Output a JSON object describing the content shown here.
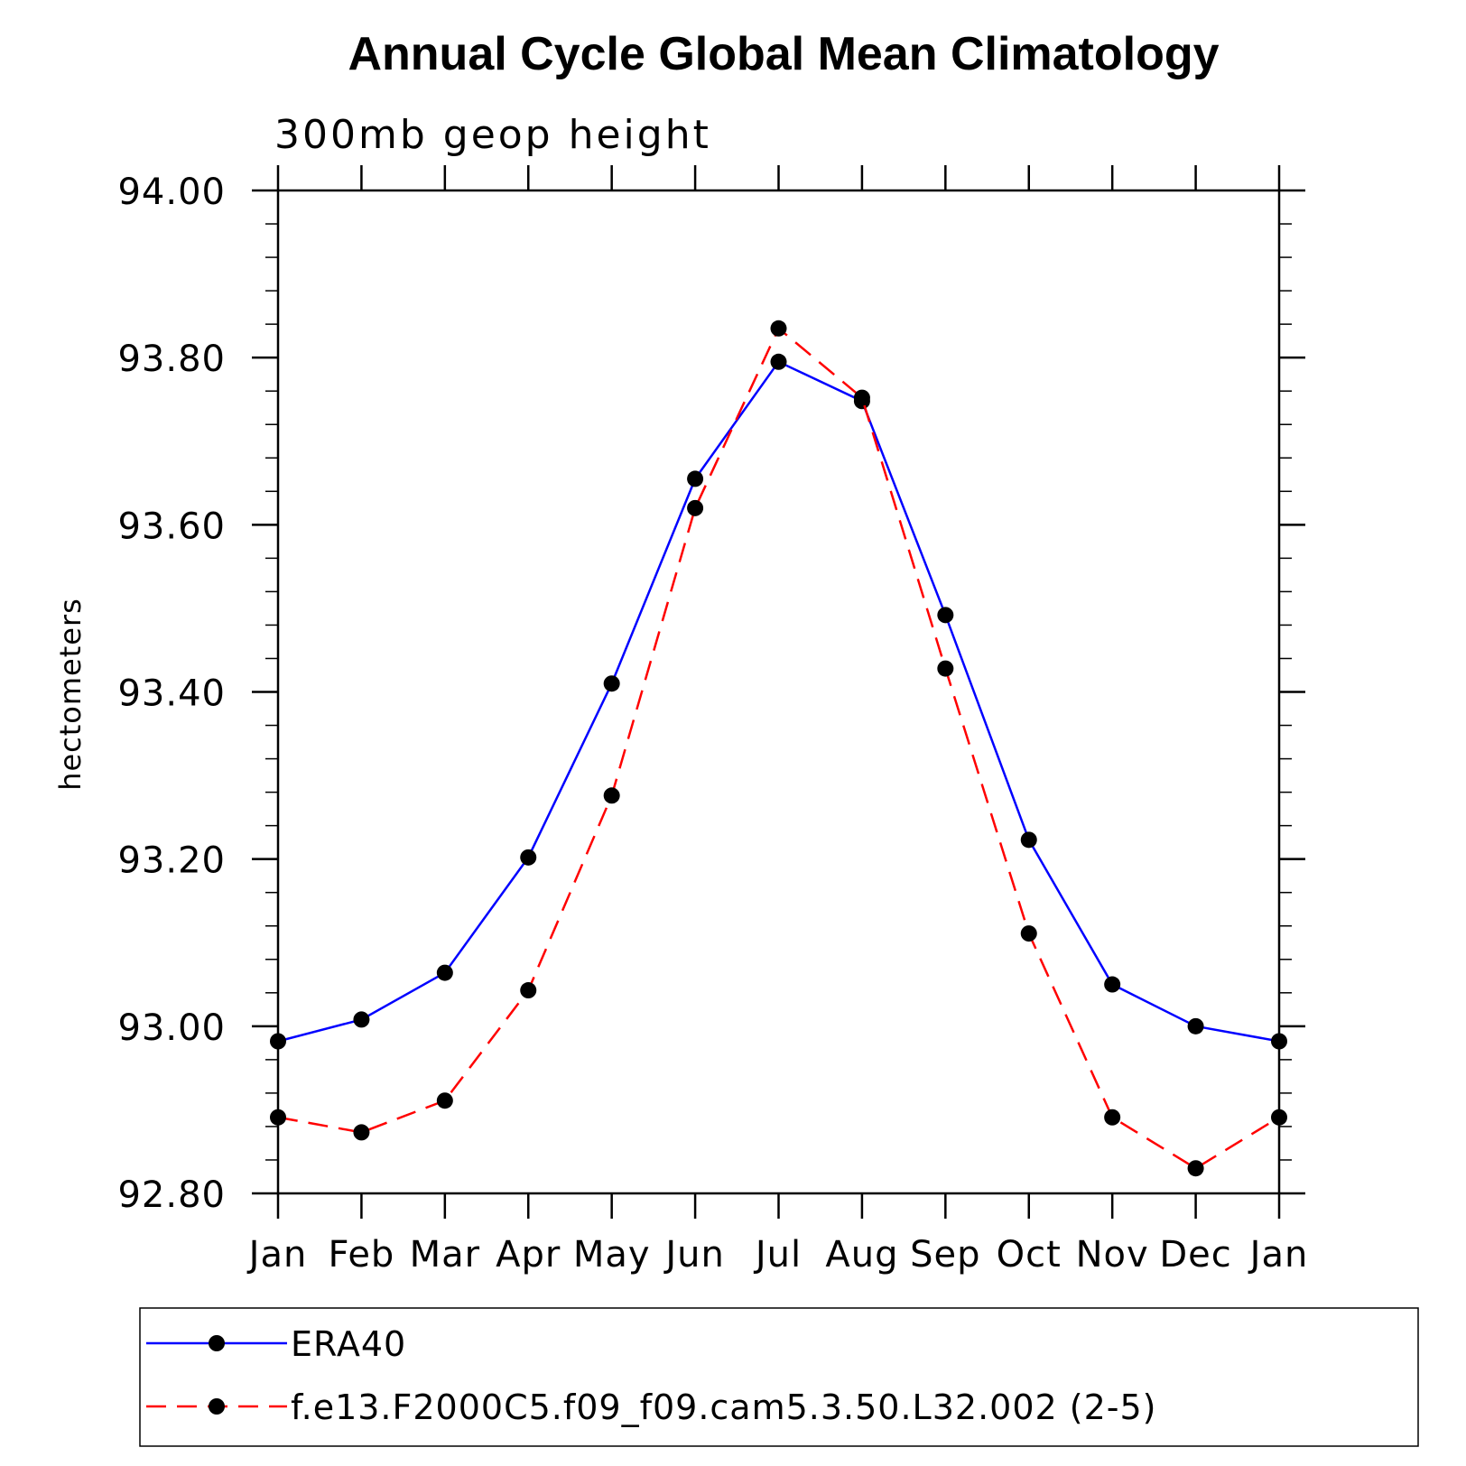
{
  "chart_data": {
    "type": "line",
    "title": "Annual Cycle Global Mean Climatology",
    "subtitle": "300mb geop height",
    "xlabel": "",
    "ylabel": "hectometers",
    "categories": [
      "Jan",
      "Feb",
      "Mar",
      "Apr",
      "May",
      "Jun",
      "Jul",
      "Aug",
      "Sep",
      "Oct",
      "Nov",
      "Dec",
      "Jan"
    ],
    "ylim": [
      92.8,
      94.0
    ],
    "yticks": [
      "92.80",
      "93.00",
      "93.20",
      "93.40",
      "93.60",
      "93.80",
      "94.00"
    ],
    "grid": false,
    "legend_position": "bottom",
    "series": [
      {
        "name": "ERA40",
        "color": "#0000ff",
        "dash": "solid",
        "marker": "filled-circle",
        "values": [
          92.982,
          93.008,
          93.064,
          93.202,
          93.41,
          93.655,
          93.795,
          93.748,
          93.492,
          93.223,
          93.05,
          93.0,
          92.982
        ]
      },
      {
        "name": "f.e13.F2000C5.f09_f09.cam5.3.50.L32.002 (2-5)",
        "color": "#ff0000",
        "dash": "dashed",
        "marker": "filled-circle",
        "values": [
          92.891,
          92.873,
          92.911,
          93.043,
          93.276,
          93.62,
          93.835,
          93.752,
          93.428,
          93.111,
          92.891,
          92.83,
          92.891
        ]
      }
    ]
  }
}
